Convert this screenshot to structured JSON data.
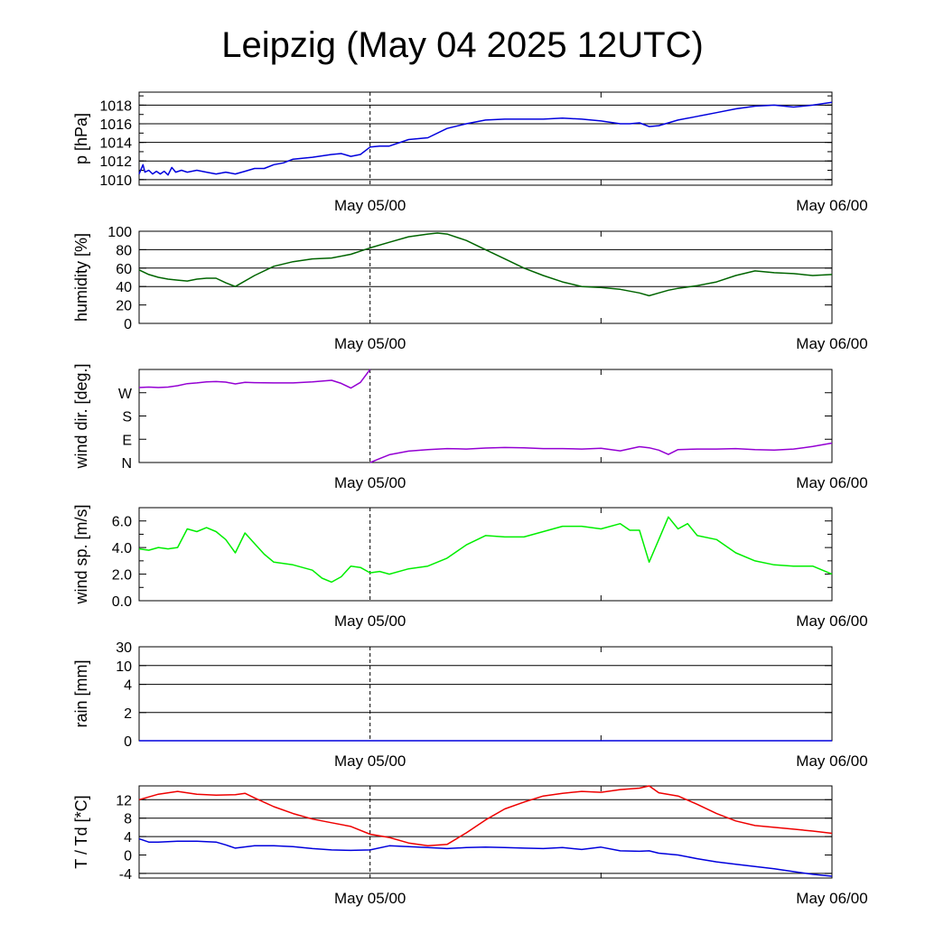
{
  "title": "Leipzig (May 04 2025 12UTC)",
  "colors": {
    "pressure": "#0000dd",
    "humidity": "#006400",
    "wind_dir": "#9400d3",
    "wind_speed": "#00ee00",
    "rain": "#0000dd",
    "temperature": "#ee0000",
    "dewpoint": "#0000dd"
  },
  "chart_data": [
    {
      "type": "line",
      "ylabel": "p [hPa]",
      "x_tick_labels": [
        "May 05/00",
        "May 06/00"
      ],
      "x_range_hours": [
        0,
        36
      ],
      "ylim": [
        1009.4,
        1019.4
      ],
      "y_ticks": [
        1010,
        1012,
        1014,
        1016,
        1018
      ],
      "y_tick_labels": [
        "1010",
        "1012",
        "1014",
        "1016",
        "1018"
      ],
      "grid_y": [
        1010,
        1012,
        1014,
        1016,
        1018
      ],
      "series": [
        {
          "key": "pressure",
          "x": [
            0,
            0.2,
            0.3,
            0.5,
            0.7,
            0.9,
            1.1,
            1.3,
            1.5,
            1.7,
            1.9,
            2.2,
            2.5,
            3,
            3.5,
            4,
            4.5,
            5,
            5.5,
            6,
            6.5,
            7,
            7.5,
            8,
            9,
            10,
            10.5,
            11,
            11.5,
            12,
            12.5,
            13,
            14,
            15,
            16,
            17,
            18,
            19,
            20,
            21,
            22,
            23,
            24,
            25,
            25.5,
            26,
            26.5,
            27,
            28,
            29,
            30,
            31,
            32,
            33,
            34,
            35,
            36
          ],
          "values": [
            1010.6,
            1011.6,
            1010.8,
            1011.0,
            1010.6,
            1010.9,
            1010.6,
            1010.9,
            1010.5,
            1011.3,
            1010.8,
            1011.0,
            1010.8,
            1011.0,
            1010.8,
            1010.6,
            1010.8,
            1010.6,
            1010.9,
            1011.2,
            1011.2,
            1011.6,
            1011.8,
            1012.2,
            1012.4,
            1012.7,
            1012.8,
            1012.5,
            1012.7,
            1013.5,
            1013.6,
            1013.6,
            1014.3,
            1014.5,
            1015.5,
            1016.0,
            1016.4,
            1016.5,
            1016.5,
            1016.5,
            1016.6,
            1016.5,
            1016.3,
            1016.0,
            1016.0,
            1016.1,
            1015.7,
            1015.8,
            1016.4,
            1016.8,
            1017.2,
            1017.6,
            1017.9,
            1018.0,
            1017.8,
            1018.0,
            1018.3
          ]
        }
      ]
    },
    {
      "type": "line",
      "ylabel": "humidity [%]",
      "x_tick_labels": [
        "May 05/00",
        "May 06/00"
      ],
      "x_range_hours": [
        0,
        36
      ],
      "ylim": [
        0,
        100
      ],
      "y_ticks": [
        0,
        20,
        40,
        60,
        80,
        100
      ],
      "y_tick_labels": [
        "0",
        "20",
        "40",
        "60",
        "80",
        "100"
      ],
      "grid_y": [
        40,
        60,
        80
      ],
      "series": [
        {
          "key": "humidity",
          "x": [
            0,
            0.5,
            1,
            1.5,
            2,
            2.5,
            3,
            3.5,
            4,
            4.5,
            5,
            6,
            7,
            8,
            9,
            10,
            11,
            12,
            13,
            14,
            15,
            15.5,
            16,
            17,
            18,
            19,
            20,
            21,
            22,
            23,
            24,
            25,
            26,
            26.5,
            27,
            27.5,
            28,
            29,
            30,
            31,
            32,
            33,
            34,
            35,
            36
          ],
          "values": [
            58,
            53,
            50,
            48,
            47,
            46,
            48,
            49,
            49,
            44,
            40,
            52,
            62,
            67,
            70,
            71,
            75,
            82,
            88,
            94,
            97,
            98,
            97,
            90,
            80,
            70,
            60,
            52,
            45,
            40,
            39,
            37,
            33,
            30,
            33,
            36,
            38,
            41,
            45,
            52,
            57,
            55,
            54,
            52,
            53
          ]
        }
      ]
    },
    {
      "type": "line",
      "ylabel": "wind dir. [deg.]",
      "x_tick_labels": [
        "May 05/00",
        "May 06/00"
      ],
      "x_range_hours": [
        0,
        36
      ],
      "ylim": [
        0,
        360
      ],
      "y_ticks": [
        0,
        90,
        180,
        270
      ],
      "y_tick_labels": [
        "N",
        "E",
        "S",
        "W"
      ],
      "grid_y": [],
      "series": [
        {
          "key": "wind_dir",
          "x": [
            0,
            0.5,
            1,
            1.5,
            2,
            2.5,
            3,
            3.5,
            4,
            4.5,
            5,
            5.5,
            6,
            7,
            8,
            9,
            10,
            10.5,
            11,
            11.5,
            12,
            12.01,
            12.5,
            13,
            14,
            15,
            16,
            17,
            18,
            19,
            20,
            21,
            22,
            23,
            24,
            25,
            26,
            26.5,
            27,
            27.5,
            28,
            29,
            30,
            31,
            32,
            33,
            34,
            35,
            36
          ],
          "values": [
            290,
            292,
            290,
            292,
            297,
            305,
            308,
            312,
            313,
            311,
            304,
            310,
            309,
            308,
            308,
            312,
            318,
            306,
            288,
            310,
            362,
            0,
            15,
            30,
            44,
            50,
            54,
            52,
            56,
            58,
            57,
            54,
            54,
            52,
            55,
            45,
            61,
            57,
            48,
            31,
            50,
            52,
            52,
            54,
            50,
            48,
            52,
            62,
            75
          ]
        }
      ]
    },
    {
      "type": "line",
      "ylabel": "wind sp. [m/s]",
      "x_tick_labels": [
        "May 05/00",
        "May 06/00"
      ],
      "x_range_hours": [
        0,
        36
      ],
      "ylim": [
        0,
        7
      ],
      "y_ticks": [
        0,
        2,
        4,
        6
      ],
      "y_tick_labels": [
        "0.0",
        "2.0",
        "4.0",
        "6.0"
      ],
      "grid_y": [],
      "series": [
        {
          "key": "wind_speed",
          "x": [
            0,
            0.5,
            1,
            1.5,
            2,
            2.5,
            3,
            3.5,
            4,
            4.5,
            5,
            5.5,
            6,
            6.5,
            7,
            8,
            9,
            9.5,
            10,
            10.5,
            11,
            11.5,
            12,
            12.5,
            13,
            14,
            15,
            16,
            17,
            18,
            19,
            20,
            21,
            22,
            23,
            24,
            25,
            25.5,
            26,
            26.5,
            27,
            27.5,
            28,
            28.5,
            29,
            30,
            31,
            32,
            33,
            34,
            35,
            36
          ],
          "values": [
            3.9,
            3.8,
            4.0,
            3.9,
            4.0,
            5.4,
            5.2,
            5.5,
            5.2,
            4.6,
            3.6,
            5.1,
            4.3,
            3.5,
            2.9,
            2.7,
            2.3,
            1.7,
            1.4,
            1.8,
            2.6,
            2.5,
            2.1,
            2.2,
            2.0,
            2.4,
            2.6,
            3.2,
            4.2,
            4.9,
            4.8,
            4.8,
            5.2,
            5.6,
            5.6,
            5.4,
            5.8,
            5.3,
            5.3,
            2.9,
            4.6,
            6.3,
            5.4,
            5.8,
            4.9,
            4.6,
            3.6,
            3.0,
            2.7,
            2.6,
            2.6,
            2.0
          ]
        }
      ]
    },
    {
      "type": "line",
      "ylabel": "rain [mm]",
      "x_tick_labels": [
        "May 05/00",
        "May 06/00"
      ],
      "x_range_hours": [
        0,
        36
      ],
      "ylim": [
        0,
        30
      ],
      "y_ticks": [
        0,
        2,
        4,
        10,
        30
      ],
      "y_tick_labels": [
        "0",
        "2",
        "4",
        "10",
        "30"
      ],
      "grid_y": [
        2,
        4,
        10
      ],
      "series": [
        {
          "key": "rain",
          "x": [
            0,
            36
          ],
          "values": [
            0,
            0
          ]
        }
      ]
    },
    {
      "type": "line",
      "ylabel": "T / Td [*C]",
      "x_tick_labels": [
        "May 05/00",
        "May 06/00"
      ],
      "x_range_hours": [
        0,
        36
      ],
      "ylim": [
        -5,
        15
      ],
      "y_ticks": [
        -4,
        0,
        4,
        8,
        12
      ],
      "y_tick_labels": [
        "-4",
        "0",
        "4",
        "8",
        "12"
      ],
      "grid_y": [
        -4,
        4,
        8,
        12
      ],
      "series": [
        {
          "key": "temperature",
          "x": [
            0,
            1,
            2,
            3,
            4,
            5,
            5.5,
            6,
            7,
            8,
            9,
            10,
            11,
            12,
            13,
            14,
            15,
            16,
            17,
            18,
            19,
            20,
            21,
            22,
            23,
            24,
            25,
            26,
            26.5,
            27,
            28,
            29,
            30,
            31,
            32,
            33,
            34,
            35,
            36
          ],
          "values": [
            12,
            13.2,
            13.8,
            13.2,
            13,
            13.1,
            13.4,
            12.4,
            10.5,
            9,
            7.8,
            7,
            6.2,
            4.5,
            3.8,
            2.6,
            2,
            2.3,
            4.8,
            7.6,
            10,
            11.5,
            12.8,
            13.4,
            13.8,
            13.6,
            14.2,
            14.5,
            15,
            13.5,
            12.8,
            11,
            9,
            7.4,
            6.4,
            6.0,
            5.6,
            5.2,
            4.7
          ]
        },
        {
          "key": "dewpoint",
          "x": [
            0,
            0.5,
            1,
            2,
            3,
            4,
            4.5,
            5,
            6,
            7,
            8,
            9,
            10,
            11,
            12,
            13,
            14,
            15,
            16,
            17,
            18,
            19,
            20,
            21,
            22,
            23,
            24,
            25,
            26,
            26.5,
            27,
            28,
            29,
            30,
            31,
            32,
            33,
            34,
            35,
            36
          ],
          "values": [
            3.5,
            2.8,
            2.8,
            3.0,
            3.0,
            2.8,
            2.2,
            1.5,
            2.0,
            2.0,
            1.8,
            1.4,
            1.1,
            1.0,
            1.1,
            2.0,
            1.8,
            1.6,
            1.4,
            1.6,
            1.7,
            1.6,
            1.5,
            1.4,
            1.6,
            1.2,
            1.7,
            0.9,
            0.8,
            0.9,
            0.4,
            0.0,
            -0.8,
            -1.5,
            -2.0,
            -2.5,
            -3.0,
            -3.6,
            -4.2,
            -4.6
          ]
        }
      ]
    }
  ]
}
